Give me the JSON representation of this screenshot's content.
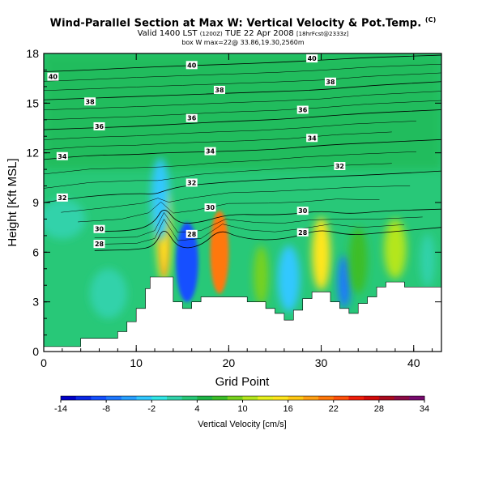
{
  "chart_data": {
    "type": "contour-section",
    "title": "Wind-Parallel Section at Max W: Vertical Velocity & Pot.Temp.",
    "title_mark": "(C)",
    "subtitle_valid": "Valid 1400 LST",
    "subtitle_runid": "(1200Z)",
    "subtitle_date": "TUE 22 Apr 2008",
    "subtitle_fcst": "[18hrFcst@2333z]",
    "info_line": "box W max=22@ 33.86,19.30,2560m",
    "xlabel": "Grid Point",
    "ylabel": "Height [Kft MSL]",
    "xlim": [
      0,
      43
    ],
    "ylim": [
      0,
      18
    ],
    "x_ticks": [
      0,
      10,
      20,
      30,
      40
    ],
    "y_ticks": [
      0,
      3,
      6,
      9,
      12,
      15,
      18
    ],
    "colorbar": {
      "title": "Vertical Velocity [cm/s]",
      "labels": [
        -14,
        -8,
        -2,
        4,
        10,
        16,
        22,
        28,
        34
      ],
      "colors": [
        "#0000c8",
        "#0a28e6",
        "#1450ff",
        "#1e78ff",
        "#28a0ff",
        "#32c8ff",
        "#32e6e6",
        "#32d2aa",
        "#28c878",
        "#1eb446",
        "#3cbe28",
        "#78d21e",
        "#b4e61e",
        "#e6f01e",
        "#ffe61e",
        "#ffc814",
        "#ffa014",
        "#ff780a",
        "#ff500a",
        "#f01e0a",
        "#d20a0a",
        "#aa0a1e",
        "#8c0a46",
        "#780a6e"
      ]
    },
    "isentropes": [
      {
        "label": "28",
        "points": [
          [
            5.5,
            6.1
          ],
          [
            10,
            6.15
          ],
          [
            12,
            6.35
          ],
          [
            13,
            7.6
          ],
          [
            14.5,
            6.2
          ],
          [
            17,
            6.35
          ],
          [
            19,
            7.4
          ],
          [
            21,
            6.9
          ],
          [
            24,
            6.7
          ],
          [
            27,
            6.9
          ],
          [
            30,
            7.4
          ],
          [
            33,
            7.0
          ],
          [
            37,
            7.2
          ],
          [
            43,
            7.5
          ]
        ]
      },
      {
        "label": "30",
        "points": [
          [
            5.5,
            7.25
          ],
          [
            10,
            7.3
          ],
          [
            12,
            7.8
          ],
          [
            13,
            8.8
          ],
          [
            14.5,
            7.7
          ],
          [
            17,
            7.8
          ],
          [
            20,
            8.3
          ],
          [
            24,
            8.25
          ],
          [
            27,
            8.3
          ],
          [
            30,
            8.5
          ],
          [
            33,
            8.3
          ],
          [
            37,
            8.5
          ],
          [
            43,
            8.6
          ]
        ]
      },
      {
        "label": "32",
        "points": [
          [
            0,
            9.0
          ],
          [
            5,
            9.4
          ],
          [
            10,
            9.55
          ],
          [
            12,
            9.5
          ],
          [
            13,
            9.7
          ],
          [
            15,
            10.0
          ],
          [
            20,
            10.25
          ],
          [
            25,
            10.4
          ],
          [
            30,
            10.55
          ],
          [
            35,
            10.65
          ],
          [
            43,
            10.9
          ]
        ]
      },
      {
        "label": "34",
        "points": [
          [
            0,
            11.6
          ],
          [
            5,
            11.85
          ],
          [
            10,
            11.9
          ],
          [
            13,
            12.0
          ],
          [
            17,
            12.05
          ],
          [
            20,
            12.1
          ],
          [
            25,
            12.2
          ],
          [
            30,
            12.45
          ],
          [
            35,
            12.6
          ],
          [
            43,
            12.8
          ]
        ]
      },
      {
        "label": "36",
        "points": [
          [
            0,
            13.4
          ],
          [
            5,
            13.5
          ],
          [
            10,
            13.6
          ],
          [
            15,
            13.75
          ],
          [
            20,
            13.9
          ],
          [
            25,
            14.0
          ],
          [
            30,
            14.2
          ],
          [
            35,
            14.4
          ],
          [
            43,
            14.6
          ]
        ]
      },
      {
        "label": "38",
        "points": [
          [
            0,
            15.2
          ],
          [
            5,
            15.3
          ],
          [
            10,
            15.4
          ],
          [
            15,
            15.5
          ],
          [
            20,
            15.6
          ],
          [
            25,
            15.7
          ],
          [
            30,
            15.8
          ],
          [
            35,
            16.05
          ],
          [
            43,
            16.3
          ]
        ]
      },
      {
        "label": "40",
        "points": [
          [
            0,
            16.9
          ],
          [
            5,
            17.0
          ],
          [
            10,
            17.15
          ],
          [
            15,
            17.25
          ],
          [
            20,
            17.35
          ],
          [
            25,
            17.45
          ],
          [
            30,
            17.6
          ],
          [
            35,
            17.75
          ],
          [
            43,
            17.9
          ]
        ]
      }
    ],
    "isentrope_label_positions": [
      {
        "label": "40",
        "x": 1.0,
        "y": 16.6
      },
      {
        "label": "38",
        "x": 5.0,
        "y": 15.1
      },
      {
        "label": "36",
        "x": 6.0,
        "y": 13.6
      },
      {
        "label": "34",
        "x": 2.0,
        "y": 11.8
      },
      {
        "label": "32",
        "x": 2.0,
        "y": 9.3
      },
      {
        "label": "30",
        "x": 6.0,
        "y": 7.4
      },
      {
        "label": "28",
        "x": 6.0,
        "y": 6.5
      },
      {
        "label": "40",
        "x": 16.0,
        "y": 17.3
      },
      {
        "label": "38",
        "x": 19.0,
        "y": 15.8
      },
      {
        "label": "36",
        "x": 16.0,
        "y": 14.1
      },
      {
        "label": "34",
        "x": 18.0,
        "y": 12.1
      },
      {
        "label": "32",
        "x": 16.0,
        "y": 10.2
      },
      {
        "label": "30",
        "x": 18.0,
        "y": 8.7
      },
      {
        "label": "28",
        "x": 16.0,
        "y": 7.1
      },
      {
        "label": "40",
        "x": 29.0,
        "y": 17.7
      },
      {
        "label": "38",
        "x": 31.0,
        "y": 16.3
      },
      {
        "label": "36",
        "x": 28.0,
        "y": 14.6
      },
      {
        "label": "34",
        "x": 29.0,
        "y": 12.9
      },
      {
        "label": "32",
        "x": 32.0,
        "y": 11.2
      },
      {
        "label": "30",
        "x": 28.0,
        "y": 8.5
      },
      {
        "label": "28",
        "x": 28.0,
        "y": 7.2
      }
    ],
    "terrain": [
      [
        0,
        0.3
      ],
      [
        4,
        0.3
      ],
      [
        4,
        0.8
      ],
      [
        8,
        0.8
      ],
      [
        8,
        1.2
      ],
      [
        9,
        1.2
      ],
      [
        9,
        1.8
      ],
      [
        10,
        1.8
      ],
      [
        10,
        2.6
      ],
      [
        11,
        2.6
      ],
      [
        11,
        3.8
      ],
      [
        11.5,
        3.8
      ],
      [
        11.5,
        4.5
      ],
      [
        14,
        4.5
      ],
      [
        14,
        3.0
      ],
      [
        15,
        3.0
      ],
      [
        15,
        2.6
      ],
      [
        16,
        2.6
      ],
      [
        16,
        3.0
      ],
      [
        17,
        3.0
      ],
      [
        17,
        3.3
      ],
      [
        22,
        3.3
      ],
      [
        22,
        3.0
      ],
      [
        24,
        3.0
      ],
      [
        24,
        2.6
      ],
      [
        25,
        2.6
      ],
      [
        25,
        2.3
      ],
      [
        26,
        2.3
      ],
      [
        26,
        1.9
      ],
      [
        27,
        1.9
      ],
      [
        27,
        2.5
      ],
      [
        28,
        2.5
      ],
      [
        28,
        3.2
      ],
      [
        29,
        3.2
      ],
      [
        29,
        3.6
      ],
      [
        31,
        3.6
      ],
      [
        31,
        3.0
      ],
      [
        32,
        3.0
      ],
      [
        32,
        2.6
      ],
      [
        33,
        2.6
      ],
      [
        33,
        2.3
      ],
      [
        34,
        2.3
      ],
      [
        34,
        2.9
      ],
      [
        35,
        2.9
      ],
      [
        35,
        3.3
      ],
      [
        36,
        3.3
      ],
      [
        36,
        3.9
      ],
      [
        37,
        3.9
      ],
      [
        37,
        4.2
      ],
      [
        39,
        4.2
      ],
      [
        39,
        3.9
      ],
      [
        43,
        3.9
      ]
    ],
    "velocity_cells": [
      {
        "x": 13,
        "y": 6.8,
        "rx": 0.45,
        "ry": 2.2,
        "value": 34
      },
      {
        "x": 13,
        "y": 7.0,
        "rx": 0.8,
        "ry": 2.8,
        "value": 16
      },
      {
        "x": 12.6,
        "y": 9.2,
        "rx": 1.0,
        "ry": 2.5,
        "value": -4
      },
      {
        "x": 15.5,
        "y": 5.4,
        "rx": 1.2,
        "ry": 2.4,
        "value": -10
      },
      {
        "x": 19,
        "y": 6.0,
        "rx": 1.0,
        "ry": 2.5,
        "value": 22
      },
      {
        "x": 26.5,
        "y": 4.4,
        "rx": 1.2,
        "ry": 2.0,
        "value": -4
      },
      {
        "x": 30,
        "y": 5.9,
        "rx": 1.0,
        "ry": 2.2,
        "value": 16
      },
      {
        "x": 32.5,
        "y": 4.2,
        "rx": 0.7,
        "ry": 1.6,
        "value": -8
      },
      {
        "x": 38,
        "y": 6.2,
        "rx": 1.2,
        "ry": 1.8,
        "value": 10
      },
      {
        "x": 34,
        "y": 5.5,
        "rx": 1.0,
        "ry": 2.0,
        "value": 6
      },
      {
        "x": 2,
        "y": 8.0,
        "rx": 2.5,
        "ry": 1.2,
        "value": 0
      },
      {
        "x": 7,
        "y": 3.5,
        "rx": 2.0,
        "ry": 1.5,
        "value": 0
      },
      {
        "x": 23.5,
        "y": 4.6,
        "rx": 0.8,
        "ry": 1.8,
        "value": 8
      },
      {
        "x": 41.5,
        "y": 5.5,
        "rx": 0.8,
        "ry": 1.6,
        "value": 0
      }
    ]
  }
}
